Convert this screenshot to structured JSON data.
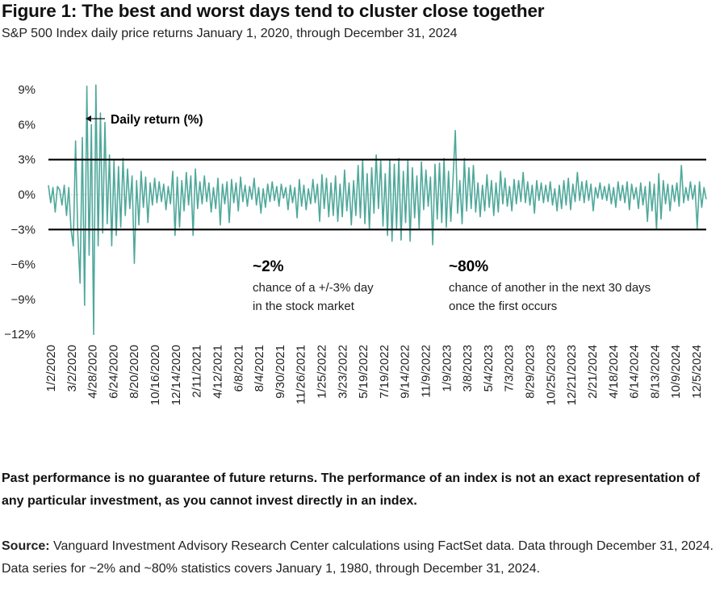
{
  "title": "Figure 1: The best and worst days tend to cluster close together",
  "subtitle": "S&P 500 Index daily price returns January 1, 2020, through December 31, 2024",
  "chart_data": {
    "type": "line",
    "ylim": [
      -12,
      9
    ],
    "yticks": [
      9,
      6,
      3,
      0,
      -3,
      -6,
      -9,
      -12
    ],
    "ytick_labels": [
      "9%",
      "6%",
      "3%",
      "0%",
      "-3%",
      "-6%",
      "-9%",
      "-12%"
    ],
    "xtick_labels": [
      "1/2/2020",
      "3/2/2020",
      "4/28/2020",
      "6/24/2020",
      "8/20/2020",
      "10/16/2020",
      "12/14/2020",
      "2/11/2021",
      "4/12/2021",
      "6/8/2021",
      "8/4/2021",
      "9/30/2021",
      "11/26/2021",
      "1/25/2022",
      "3/23/2022",
      "5/19/2022",
      "7/19/2022",
      "9/14/2022",
      "11/9/2022",
      "1/9/2023",
      "3/8/2023",
      "5/4/2023",
      "7/3/2023",
      "8/29/2023",
      "10/25/2023",
      "12/21/2023",
      "2/21/2024",
      "4/18/2024",
      "6/14/2024",
      "8/13/2024",
      "10/9/2024",
      "12/5/2024"
    ],
    "reference_lines": [
      3,
      -3
    ],
    "series": [
      {
        "name": "Daily return (%)",
        "color": "#4fa89b",
        "values": [
          0.8,
          -0.7,
          0.6,
          -1.5,
          0.7,
          0.4,
          -0.9,
          0.8,
          -1.8,
          0.6,
          -3.0,
          -4.4,
          4.6,
          -3.4,
          -7.6,
          4.9,
          -9.5,
          9.3,
          -5.2,
          6.0,
          -12.0,
          9.4,
          -4.4,
          7.0,
          -3.3,
          6.2,
          -2.5,
          3.4,
          -4.4,
          2.9,
          -3.5,
          2.4,
          -2.8,
          3.1,
          -1.8,
          2.2,
          -1.2,
          1.6,
          -5.9,
          1.2,
          -2.6,
          2.0,
          -1.1,
          1.5,
          -2.4,
          1.0,
          -0.9,
          1.4,
          -0.7,
          1.1,
          -0.6,
          0.9,
          -1.3,
          0.7,
          -0.8,
          2.0,
          -3.5,
          1.5,
          -2.8,
          1.2,
          -1.4,
          1.9,
          -0.9,
          1.6,
          -3.5,
          2.2,
          -1.2,
          1.1,
          -0.8,
          1.6,
          -0.6,
          1.0,
          -1.5,
          0.6,
          -1.2,
          1.4,
          -2.6,
          0.9,
          -0.8,
          1.1,
          -2.4,
          1.3,
          -0.7,
          1.0,
          -1.4,
          1.5,
          -0.6,
          0.8,
          -1.0,
          0.7,
          -0.4,
          1.4,
          -0.9,
          0.6,
          -1.6,
          0.5,
          -1.1,
          0.9,
          -0.6,
          1.1,
          -0.5,
          0.7,
          -1.0,
          0.9,
          -0.3,
          0.6,
          -1.3,
          0.8,
          -0.7,
          0.6,
          -2.0,
          1.3,
          -1.0,
          0.8,
          -1.3,
          0.5,
          -0.8,
          1.3,
          -0.7,
          0.9,
          -2.3,
          1.7,
          -1.2,
          1.4,
          -1.9,
          1.0,
          -1.8,
          1.6,
          -2.3,
          0.9,
          -1.9,
          2.1,
          -1.4,
          1.0,
          -2.6,
          1.2,
          -1.8,
          2.5,
          -2.0,
          3.0,
          -2.5,
          1.8,
          -3.0,
          2.3,
          -1.6,
          3.4,
          -1.2,
          2.9,
          -2.7,
          1.8,
          -3.5,
          3.0,
          -4.0,
          2.6,
          -2.9,
          3.1,
          -3.9,
          2.0,
          -2.4,
          3.0,
          -4.0,
          2.3,
          -2.0,
          1.6,
          -2.9,
          2.8,
          -1.3,
          2.1,
          -1.0,
          1.5,
          -4.3,
          2.6,
          -2.1,
          2.7,
          -2.4,
          3.1,
          -2.8,
          2.0,
          -2.3,
          1.4,
          5.5,
          -1.6,
          1.2,
          -2.5,
          3.1,
          -1.4,
          2.3,
          -1.2,
          2.5,
          -1.5,
          1.0,
          -1.9,
          0.8,
          -1.4,
          1.7,
          -1.1,
          1.2,
          -1.8,
          1.0,
          -1.5,
          2.0,
          -0.8,
          1.4,
          -1.0,
          0.7,
          -1.4,
          1.3,
          -0.8,
          1.2,
          -0.6,
          1.9,
          -0.7,
          1.1,
          -0.9,
          0.8,
          -1.6,
          1.2,
          -0.5,
          1.0,
          -0.7,
          0.8,
          -0.6,
          1.1,
          -0.9,
          0.5,
          -1.4,
          0.8,
          -1.2,
          1.2,
          -0.9,
          1.4,
          -1.3,
          0.9,
          -0.6,
          1.9,
          -0.5,
          1.1,
          -0.7,
          1.2,
          -0.5,
          0.9,
          -1.4,
          0.6,
          -0.3,
          1.0,
          -0.4,
          0.7,
          -0.5,
          0.9,
          -0.8,
          0.6,
          -1.1,
          1.1,
          -0.5,
          0.8,
          -0.7,
          1.1,
          -1.3,
          0.9,
          -0.4,
          0.6,
          -1.2,
          1.0,
          -0.9,
          0.7,
          -2.3,
          1.1,
          -1.4,
          0.9,
          -3.0,
          1.8,
          -2.1,
          1.2,
          -0.8,
          0.9,
          -1.4,
          0.8,
          -0.6,
          1.0,
          -1.0,
          2.5,
          -0.7,
          0.6,
          -0.5,
          1.1,
          -0.4,
          0.8,
          -2.9,
          1.1,
          -1.1,
          0.6,
          -0.4
        ]
      }
    ],
    "annotations": [
      {
        "label": "Daily return (%)"
      },
      {
        "headline": "~2%",
        "lines": [
          "chance of a +/-3% day",
          "in the stock market"
        ]
      },
      {
        "headline": "~80%",
        "lines": [
          "chance of another in the next 30 days",
          "once the first occurs"
        ]
      }
    ]
  },
  "footer": {
    "disclaimer": "Past performance is no guarantee of future returns. The performance of an index is not an exact representation of any particular investment, as you cannot invest directly in an index.",
    "source_label": "Source:",
    "source_text": " Vanguard Investment Advisory Research Center calculations using FactSet data. Data through December 31, 2024. Data series for ~2% and ~80% statistics covers January 1, 1980, through December 31, 2024."
  }
}
